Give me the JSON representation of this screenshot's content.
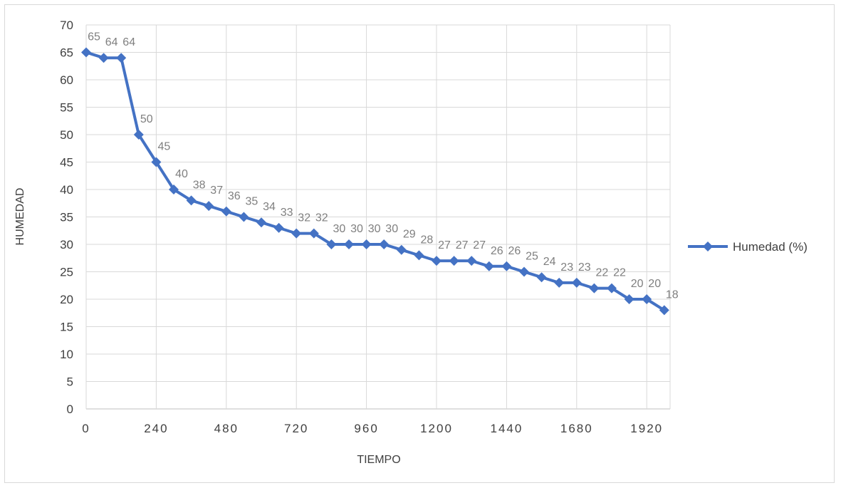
{
  "chart_data": {
    "type": "line",
    "title": "",
    "xlabel": "TIEMPO",
    "ylabel": "HUMEDAD",
    "xlim": [
      0,
      2000
    ],
    "ylim": [
      0,
      70
    ],
    "yticks": [
      0,
      5,
      10,
      15,
      20,
      25,
      30,
      35,
      40,
      45,
      50,
      55,
      60,
      65,
      70
    ],
    "xticks": [
      0,
      240,
      480,
      720,
      960,
      1200,
      1440,
      1680,
      1920
    ],
    "grid": true,
    "legend_position": "right",
    "data_labels": true,
    "series": [
      {
        "name": "Humedad (%)",
        "color": "#4472c4",
        "marker": "diamond",
        "x": [
          0,
          60,
          120,
          180,
          240,
          300,
          360,
          420,
          480,
          540,
          600,
          660,
          720,
          780,
          840,
          900,
          960,
          1020,
          1080,
          1140,
          1200,
          1260,
          1320,
          1380,
          1440,
          1500,
          1560,
          1620,
          1680,
          1740,
          1800,
          1860,
          1920,
          1980
        ],
        "values": [
          65,
          64,
          64,
          50,
          45,
          40,
          38,
          37,
          36,
          35,
          34,
          33,
          32,
          32,
          30,
          30,
          30,
          30,
          29,
          28,
          27,
          27,
          27,
          26,
          26,
          25,
          24,
          23,
          23,
          22,
          22,
          20,
          20,
          18
        ]
      }
    ]
  }
}
